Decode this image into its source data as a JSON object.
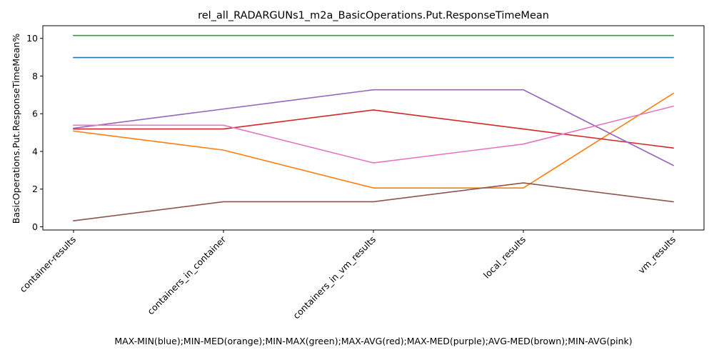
{
  "chart_data": {
    "type": "line",
    "title": "rel_all_RADARGUNs1_m2a_BasicOperations.Put.ResponseTimeMean",
    "xlabel": "MAX-MIN(blue);MIN-MED(orange);MIN-MAX(green);MAX-AVG(red);MAX-MED(purple);AVG-MED(brown);MIN-AVG(pink)",
    "ylabel": "BasicOperations.Put.ResponseTimeMean%",
    "categories": [
      "container-results",
      "containers_in_container",
      "containers_in_vm_results",
      "local_results",
      "vm_results"
    ],
    "ylim": [
      -0.17,
      10.67
    ],
    "yticks": [
      0,
      2,
      4,
      6,
      8,
      10
    ],
    "ytick_labels": [
      "0",
      "2",
      "4",
      "6",
      "8",
      "10"
    ],
    "grid": false,
    "legend": "none",
    "series": [
      {
        "color": "#1f77b4",
        "values": [
          8.98,
          8.98,
          8.98,
          8.98,
          8.98
        ]
      },
      {
        "color": "#ff7f0e",
        "values": [
          5.08,
          4.07,
          2.06,
          2.06,
          7.08
        ]
      },
      {
        "color": "#2ca02c",
        "values": [
          10.15,
          10.15,
          10.15,
          10.15,
          10.15
        ]
      },
      {
        "color": "#d62728",
        "values": [
          5.19,
          5.19,
          6.2,
          5.19,
          4.18
        ]
      },
      {
        "color": "#9467bd",
        "values": [
          5.23,
          6.25,
          7.27,
          7.27,
          3.26
        ]
      },
      {
        "color": "#8c564b",
        "values": [
          0.32,
          1.33,
          1.33,
          2.33,
          1.33
        ]
      },
      {
        "color": "#e377c2",
        "values": [
          5.39,
          5.39,
          3.39,
          4.39,
          6.4
        ]
      }
    ]
  }
}
